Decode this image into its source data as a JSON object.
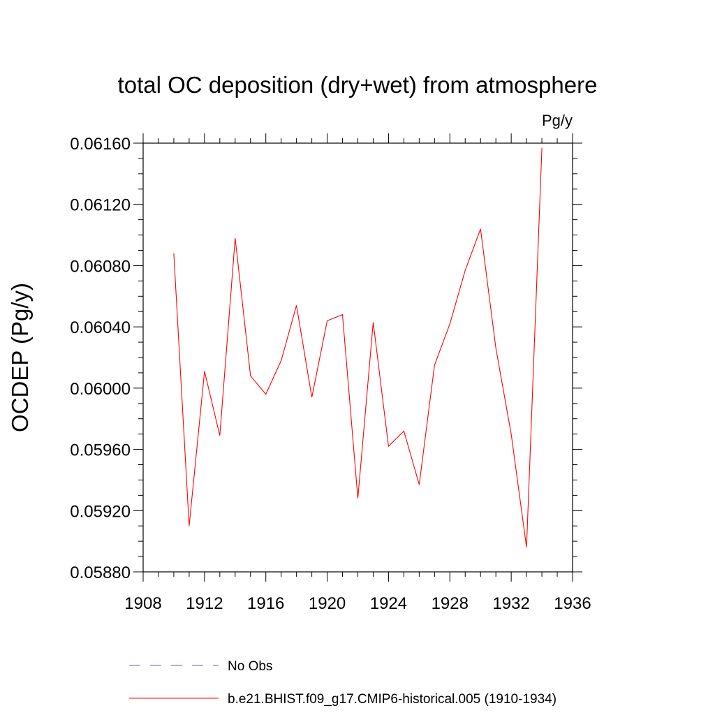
{
  "chart_data": {
    "type": "line",
    "title": "total OC deposition (dry+wet) from atmosphere",
    "units": "Pg/y",
    "ylabel": "OCDEP  (Pg/y)",
    "xlabel": "",
    "xlim": [
      1908,
      1936
    ],
    "ylim": [
      0.0588,
      0.0616
    ],
    "x_ticks": [
      1908,
      1912,
      1916,
      1920,
      1924,
      1928,
      1932,
      1936
    ],
    "x_tick_labels": [
      "1908",
      "1912",
      "1916",
      "1920",
      "1924",
      "1928",
      "1932",
      "1936"
    ],
    "y_ticks": [
      0.0588,
      0.0592,
      0.0596,
      0.06,
      0.0604,
      0.0608,
      0.0612,
      0.0616
    ],
    "y_tick_labels": [
      "0.05880",
      "0.05920",
      "0.05960",
      "0.06000",
      "0.06040",
      "0.06080",
      "0.06120",
      "0.06160"
    ],
    "grid": false,
    "legend_position": "bottom",
    "series": [
      {
        "name": "b.e21.BHIST.f09_g17.CMIP6-historical.005 (1910-1934)",
        "color": "#ff0000",
        "style": "solid",
        "x": [
          1910,
          1911,
          1912,
          1913,
          1914,
          1915,
          1916,
          1917,
          1918,
          1919,
          1920,
          1921,
          1922,
          1923,
          1924,
          1925,
          1926,
          1927,
          1928,
          1929,
          1930,
          1931,
          1932,
          1933,
          1934
        ],
        "values": [
          0.06088,
          0.0591,
          0.06011,
          0.05969,
          0.06098,
          0.06008,
          0.05996,
          0.06018,
          0.06054,
          0.05994,
          0.06044,
          0.06048,
          0.05928,
          0.06043,
          0.05962,
          0.05972,
          0.05937,
          0.06015,
          0.06042,
          0.06077,
          0.06104,
          0.06026,
          0.0597,
          0.05896,
          0.06157
        ]
      },
      {
        "name": "No Obs",
        "color": "#6a5acd",
        "style": "dashed",
        "x": [],
        "values": []
      }
    ]
  }
}
